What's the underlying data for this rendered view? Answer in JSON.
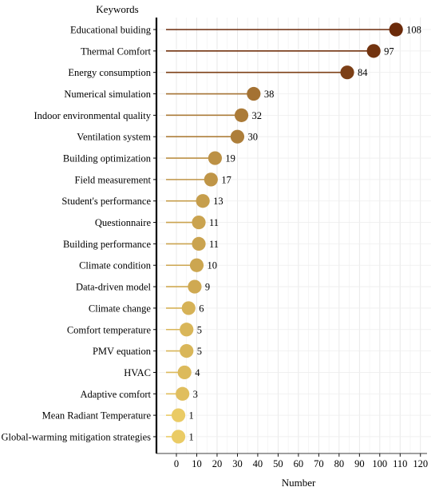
{
  "chart_data": {
    "type": "lollipop",
    "title": "",
    "ylabel": "Keywords",
    "xlabel": "Number",
    "xlim": [
      -5,
      125
    ],
    "xticks": [
      0,
      10,
      20,
      30,
      40,
      50,
      60,
      70,
      80,
      90,
      100,
      110,
      120
    ],
    "grid": true,
    "legend": "none",
    "color_low": "#F7DC6F",
    "color_high": "#6B2A0A",
    "categories": [
      "Educational buiding",
      "Thermal Comfort",
      "Energy consumption",
      "Numerical simulation",
      "Indoor environmental quality",
      "Ventilation system",
      "Building optimization",
      "Field measurement",
      "Student's performance",
      "Questionnaire",
      "Building performance",
      "Climate condition",
      "Data-driven model",
      "Climate change",
      "Comfort temperature",
      "PMV equation",
      "HVAC",
      "Adaptive comfort",
      "Mean Radiant Temperature",
      "Global-warming mitigation strategies"
    ],
    "values": [
      108,
      97,
      84,
      38,
      32,
      30,
      19,
      17,
      13,
      11,
      11,
      10,
      9,
      6,
      5,
      5,
      4,
      3,
      1,
      1
    ],
    "value_labels": [
      "108",
      "97",
      "84",
      "38",
      "32",
      "30",
      "19",
      "17",
      "13",
      "11",
      "11",
      "10",
      "9",
      "6",
      "5",
      "5",
      "4",
      "3",
      "1",
      "1"
    ],
    "tick_labels": [
      "0",
      "10",
      "20",
      "30",
      "40",
      "50",
      "60",
      "70",
      "80",
      "90",
      "100",
      "110",
      "120"
    ]
  }
}
